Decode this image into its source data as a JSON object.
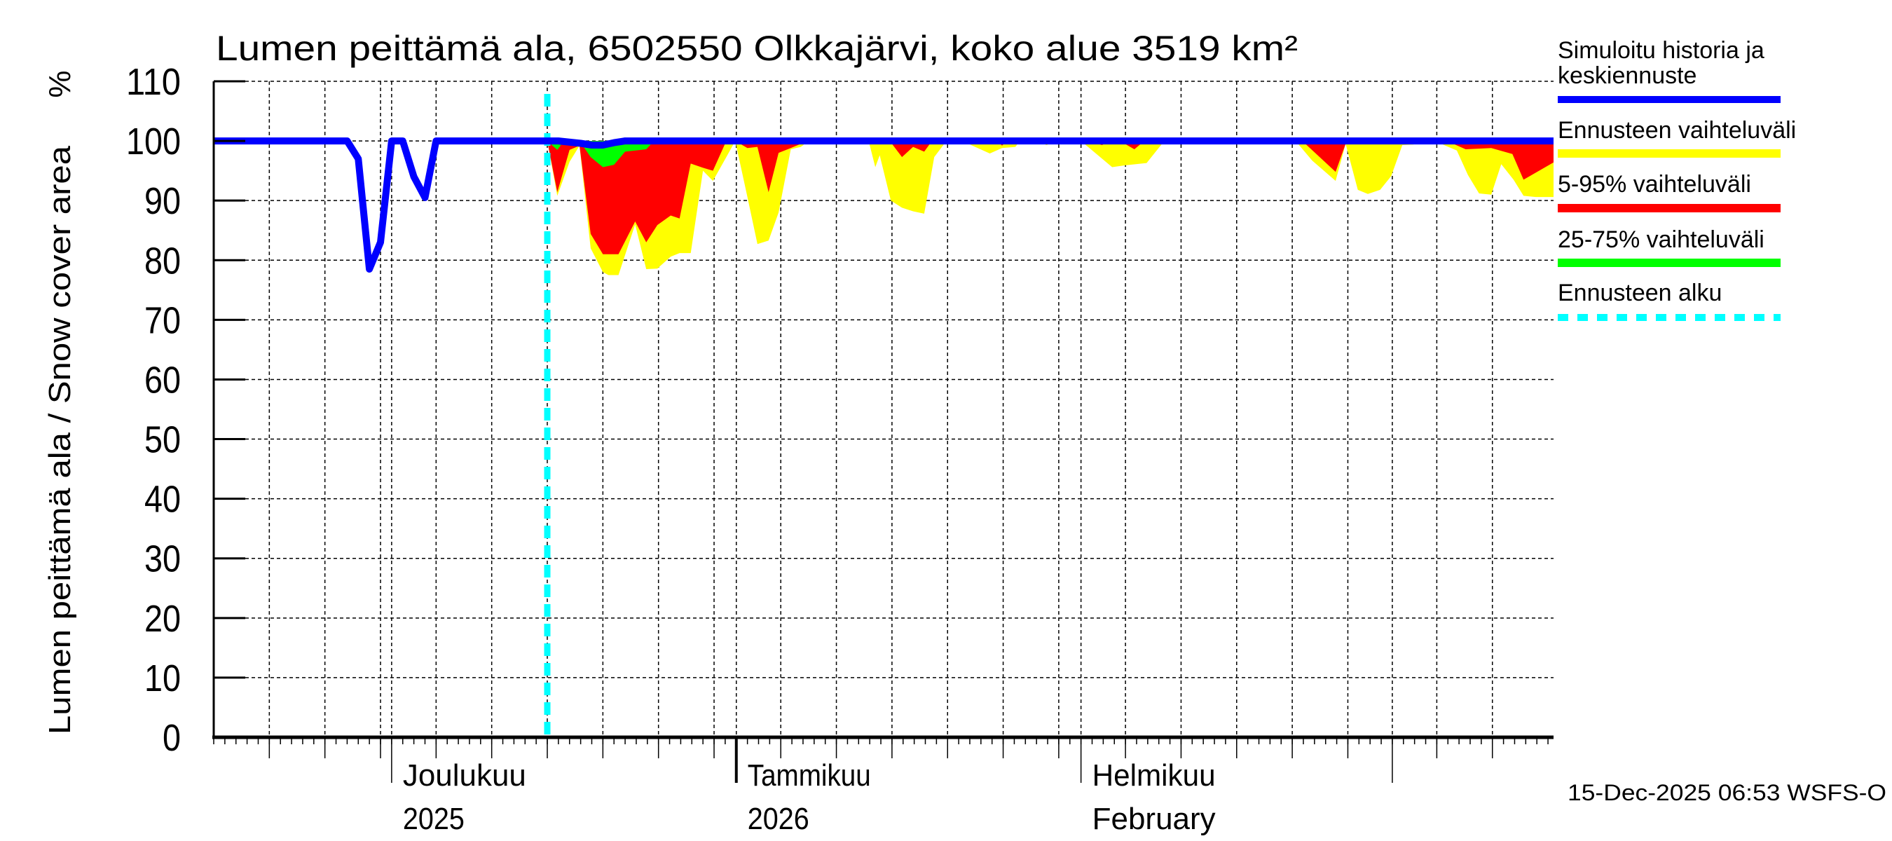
{
  "chart_data": {
    "type": "area",
    "title": "Lumen peittämä ala, 6502550 Olkkajärvi, koko alue 3519 km²",
    "ylabel": "Lumen peittämä ala / Snow cover area",
    "yunit": "%",
    "ylim": [
      0,
      110
    ],
    "yticks": [
      "0",
      "10",
      "20",
      "30",
      "40",
      "50",
      "60",
      "70",
      "80",
      "90",
      "100",
      "110"
    ],
    "grid": true,
    "legend_position": "right",
    "x_start_date": "2025-11-15",
    "x_range_days": [
      0,
      120.5
    ],
    "forecast_start_day": 30,
    "month_starts": [
      {
        "day": 16,
        "line1": "Joulukuu",
        "line2": "2025",
        "year_boundary": false
      },
      {
        "day": 47,
        "line1": "Tammikuu",
        "line2": "2026",
        "year_boundary": true
      },
      {
        "day": 78,
        "line1": "Helmikuu",
        "line2": "February",
        "year_boundary": false
      },
      {
        "day": 106,
        "line1": "",
        "line2": "",
        "year_boundary": false
      }
    ],
    "grid_days": [
      5,
      10,
      15,
      20,
      25,
      30,
      35,
      40,
      45,
      51,
      56,
      61,
      66,
      71,
      76,
      82,
      87,
      92,
      97,
      102,
      110,
      115
    ],
    "legend": [
      {
        "label": "Simuloitu historia ja",
        "label2": "keskiennuste",
        "color": "#0000ff",
        "style": "solid"
      },
      {
        "label": "Ennusteen vaihteluväli",
        "color": "#ffff00",
        "style": "solid"
      },
      {
        "label": "5-95% vaihteluväli",
        "color": "#ff0000",
        "style": "solid"
      },
      {
        "label": "25-75% vaihteluväli",
        "color": "#00ff00",
        "style": "solid"
      },
      {
        "label": "Ennusteen alku",
        "color": "#00ffff",
        "style": "dashed"
      }
    ],
    "series": [
      {
        "name": "Ennusteen vaihteluväli (min)",
        "color": "#ffff00",
        "upper": 100,
        "points": [
          [
            30,
            100
          ],
          [
            30.9,
            90.8
          ],
          [
            32,
            96.5
          ],
          [
            32.9,
            99.2
          ],
          [
            33.9,
            82
          ],
          [
            35,
            78
          ],
          [
            35.5,
            77.5
          ],
          [
            36.4,
            77.5
          ],
          [
            37.9,
            86
          ],
          [
            38.9,
            78.5
          ],
          [
            39.9,
            78.6
          ],
          [
            41.1,
            80.6
          ],
          [
            41.9,
            81.2
          ],
          [
            42.9,
            81.2
          ],
          [
            44,
            95
          ],
          [
            44.9,
            93.3
          ],
          [
            46.1,
            97.3
          ],
          [
            46.9,
            100
          ],
          [
            48,
            90.6
          ],
          [
            48.9,
            82.7
          ],
          [
            49.9,
            83.3
          ],
          [
            50.8,
            88
          ],
          [
            51.9,
            98.6
          ],
          [
            52.8,
            99
          ],
          [
            53.5,
            100
          ],
          [
            58.9,
            100
          ],
          [
            59.5,
            95.6
          ],
          [
            59.9,
            97.6
          ],
          [
            60.9,
            90
          ],
          [
            61.9,
            88.8
          ],
          [
            62.9,
            88.2
          ],
          [
            63.9,
            87.8
          ],
          [
            64.8,
            97.3
          ],
          [
            65.9,
            100
          ],
          [
            67.3,
            100
          ],
          [
            69.8,
            97.9
          ],
          [
            70.9,
            98.8
          ],
          [
            72.1,
            99
          ],
          [
            72.5,
            100
          ],
          [
            74,
            100
          ],
          [
            74.9,
            99.3
          ],
          [
            75.8,
            100
          ],
          [
            78,
            100
          ],
          [
            80.8,
            95.6
          ],
          [
            81.9,
            95.9
          ],
          [
            83.9,
            96.3
          ],
          [
            85.5,
            100
          ],
          [
            97.3,
            100
          ],
          [
            98.8,
            96.7
          ],
          [
            100.9,
            93.3
          ],
          [
            101.8,
            99.5
          ],
          [
            102.9,
            91.8
          ],
          [
            103.8,
            91.1
          ],
          [
            104.9,
            91.8
          ],
          [
            105.9,
            94.1
          ],
          [
            106.9,
            99.3
          ],
          [
            107.9,
            99.4
          ],
          [
            108.4,
            100
          ],
          [
            109.4,
            99.5
          ],
          [
            110.4,
            99.5
          ],
          [
            111.8,
            98.4
          ],
          [
            112.8,
            94.3
          ],
          [
            113.8,
            91.2
          ],
          [
            114.9,
            91
          ],
          [
            115.8,
            96.1
          ],
          [
            116.9,
            93.5
          ],
          [
            117.8,
            90.8
          ],
          [
            118.9,
            90.6
          ],
          [
            120.5,
            90.6
          ]
        ]
      },
      {
        "name": "5-95% vaihteluväli",
        "color": "#ff0000",
        "upper": 100,
        "points": [
          [
            30,
            100
          ],
          [
            30.9,
            91.4
          ],
          [
            32,
            98.5
          ],
          [
            32.9,
            99.2
          ],
          [
            33.9,
            84.4
          ],
          [
            35,
            81
          ],
          [
            36.4,
            81
          ],
          [
            37.9,
            86.5
          ],
          [
            38.9,
            83
          ],
          [
            39.9,
            85.9
          ],
          [
            41.1,
            87.5
          ],
          [
            41.9,
            87
          ],
          [
            42.9,
            96.2
          ],
          [
            44,
            95.5
          ],
          [
            44.9,
            95
          ],
          [
            46.1,
            100
          ],
          [
            46.9,
            100
          ],
          [
            48,
            98.8
          ],
          [
            48.9,
            99
          ],
          [
            49.9,
            91.4
          ],
          [
            50.8,
            98
          ],
          [
            51.9,
            98.8
          ],
          [
            52.8,
            99.5
          ],
          [
            53.5,
            100
          ],
          [
            60.8,
            100
          ],
          [
            61.9,
            97.3
          ],
          [
            62.9,
            99
          ],
          [
            63.9,
            98.2
          ],
          [
            64.6,
            100
          ],
          [
            70.5,
            100
          ],
          [
            70.9,
            99.2
          ],
          [
            71.3,
            100
          ],
          [
            78.6,
            100
          ],
          [
            79.9,
            99.3
          ],
          [
            80.5,
            100
          ],
          [
            81.5,
            100
          ],
          [
            82.8,
            98.6
          ],
          [
            83.7,
            100
          ],
          [
            97.9,
            100
          ],
          [
            100.9,
            94.8
          ],
          [
            101.8,
            99.5
          ],
          [
            102.5,
            99.7
          ],
          [
            110.9,
            100
          ],
          [
            112.6,
            98.6
          ],
          [
            114.9,
            98.8
          ],
          [
            116.8,
            97.8
          ],
          [
            117.8,
            93.5
          ],
          [
            120.5,
            96.4
          ]
        ]
      },
      {
        "name": "25-75% vaihteluväli",
        "color": "#00ff00",
        "upper": 100,
        "points": [
          [
            30,
            100
          ],
          [
            30.9,
            98.5
          ],
          [
            31.5,
            100
          ],
          [
            32.9,
            100
          ],
          [
            33.9,
            97.3
          ],
          [
            35,
            95.6
          ],
          [
            36,
            96
          ],
          [
            37,
            98.2
          ],
          [
            38.9,
            98.6
          ],
          [
            39.6,
            100
          ]
        ]
      },
      {
        "name": "Simuloitu historia ja keskiennuste",
        "color": "#0000ff",
        "points": [
          [
            0,
            100
          ],
          [
            12,
            100
          ],
          [
            13,
            97
          ],
          [
            14,
            78.5
          ],
          [
            15,
            83
          ],
          [
            16,
            100
          ],
          [
            17,
            100
          ],
          [
            18,
            94
          ],
          [
            19,
            90.5
          ],
          [
            20,
            100
          ],
          [
            31,
            100
          ],
          [
            33,
            99.6
          ],
          [
            34,
            99.3
          ],
          [
            35,
            99.3
          ],
          [
            36,
            99.7
          ],
          [
            37,
            100
          ],
          [
            120.5,
            100
          ]
        ]
      }
    ]
  },
  "footer": {
    "timestamp": "15-Dec-2025 06:53 WSFS-O"
  }
}
